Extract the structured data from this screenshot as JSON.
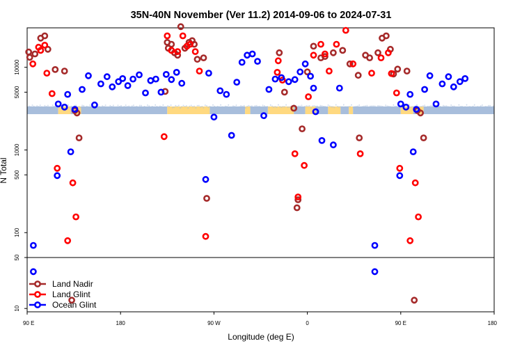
{
  "chart_data": {
    "type": "scatter",
    "title": "35N-40N November (Ver 11.2)   2014-09-06 to 2024-07-31",
    "xlabel": "Longitude (deg E)",
    "ylabel": "N Total",
    "x_scale": "wrapped longitude, 90E eastward through 180 and 0 to 180",
    "x_ticks": [
      "90 E",
      "180",
      "90 W",
      "0",
      "90 E",
      "180"
    ],
    "y_scale": "log",
    "y_ticks_upper": [
      "10000",
      "5000",
      "1000",
      "500",
      "100"
    ],
    "y_ticks_lower": [
      "50",
      "10"
    ],
    "y_range_upper": [
      50,
      30000
    ],
    "y_range_lower": [
      9,
      50
    ],
    "land_mask": {
      "land_color": "#a8bedc",
      "ocean_color": "#ffd980"
    },
    "legend_position": "bottom-left",
    "series": [
      {
        "name": "Land Nadir",
        "color": "#a52a2a",
        "points": [
          [
            91.5,
            15300
          ],
          [
            92.5,
            13200
          ],
          [
            97.5,
            14500
          ],
          [
            103,
            22500
          ],
          [
            107,
            24000
          ],
          [
            110,
            16500
          ],
          [
            117,
            9400
          ],
          [
            126,
            9000
          ],
          [
            133,
            13
          ],
          [
            136,
            3000
          ],
          [
            138,
            2800
          ],
          [
            140,
            1400
          ],
          [
            223,
            5100
          ],
          [
            225,
            20000
          ],
          [
            226,
            17000
          ],
          [
            229,
            19000
          ],
          [
            232,
            15000
          ],
          [
            235,
            14000
          ],
          [
            238,
            31000
          ],
          [
            242,
            17000
          ],
          [
            246,
            20000
          ],
          [
            249,
            21000
          ],
          [
            251,
            19000
          ],
          [
            254,
            12500
          ],
          [
            260,
            13000
          ],
          [
            263,
            260
          ],
          [
            333,
            15000
          ],
          [
            338,
            5000
          ],
          [
            347,
            3200
          ],
          [
            351,
            250
          ],
          [
            350,
            200
          ],
          [
            355,
            1800
          ],
          [
            360,
            8800
          ],
          [
            366,
            18000
          ],
          [
            373,
            13000
          ],
          [
            377,
            13500
          ],
          [
            385,
            15000
          ],
          [
            394,
            16000
          ],
          [
            401,
            11000
          ],
          [
            409,
            8000
          ],
          [
            410,
            1400
          ],
          [
            416,
            14000
          ],
          [
            420,
            13000
          ],
          [
            428,
            15000
          ],
          [
            432,
            22500
          ],
          [
            436,
            24000
          ],
          [
            440,
            16500
          ],
          [
            443,
            8300
          ],
          [
            447,
            9500
          ],
          [
            456,
            9000
          ],
          [
            463,
            13
          ],
          [
            466,
            3000
          ],
          [
            469,
            2800
          ],
          [
            472,
            1400
          ]
        ]
      },
      {
        "name": "Land Glint",
        "color": "#ff0000",
        "points": [
          [
            95.5,
            11000
          ],
          [
            101,
            17500
          ],
          [
            103,
            16000
          ],
          [
            107,
            18500
          ],
          [
            109,
            8500
          ],
          [
            114,
            4800
          ],
          [
            119,
            600
          ],
          [
            129,
            80
          ],
          [
            134,
            400
          ],
          [
            137,
            155
          ],
          [
            222,
            1450
          ],
          [
            225,
            24000
          ],
          [
            229,
            16000
          ],
          [
            235,
            15500
          ],
          [
            240,
            24000
          ],
          [
            244,
            18000
          ],
          [
            247,
            19000
          ],
          [
            252,
            15500
          ],
          [
            256,
            9000
          ],
          [
            262,
            90
          ],
          [
            331,
            8700
          ],
          [
            332,
            12000
          ],
          [
            336,
            7000
          ],
          [
            348,
            900
          ],
          [
            351,
            270
          ],
          [
            357,
            650
          ],
          [
            361,
            4400
          ],
          [
            366,
            14000
          ],
          [
            373,
            19000
          ],
          [
            377,
            14500
          ],
          [
            381,
            9000
          ],
          [
            388,
            19000
          ],
          [
            397,
            28000
          ],
          [
            404,
            11000
          ],
          [
            411,
            900
          ],
          [
            422,
            8500
          ],
          [
            431,
            13000
          ],
          [
            438,
            15000
          ],
          [
            441,
            8400
          ],
          [
            446,
            4900
          ],
          [
            449,
            600
          ],
          [
            459,
            80
          ],
          [
            464,
            400
          ],
          [
            467,
            155
          ]
        ]
      },
      {
        "name": "Ocean Glint",
        "color": "#0000ff",
        "points": [
          [
            96,
            70
          ],
          [
            96,
            32
          ],
          [
            119,
            490
          ],
          [
            120,
            3600
          ],
          [
            126,
            3300
          ],
          [
            129,
            4700
          ],
          [
            132,
            950
          ],
          [
            136,
            3100
          ],
          [
            143,
            5400
          ],
          [
            149,
            7900
          ],
          [
            155,
            3500
          ],
          [
            161,
            6300
          ],
          [
            167,
            7700
          ],
          [
            172,
            5800
          ],
          [
            178,
            6700
          ],
          [
            182,
            7300
          ],
          [
            187,
            6000
          ],
          [
            192,
            7200
          ],
          [
            198,
            8100
          ],
          [
            204,
            4900
          ],
          [
            209,
            6900
          ],
          [
            214,
            7200
          ],
          [
            219,
            5000
          ],
          [
            224,
            8200
          ],
          [
            229,
            7100
          ],
          [
            234,
            8700
          ],
          [
            239,
            6400
          ],
          [
            262,
            440
          ],
          [
            265,
            8500
          ],
          [
            270,
            2500
          ],
          [
            276,
            5200
          ],
          [
            282,
            4700
          ],
          [
            287,
            1500
          ],
          [
            292,
            6600
          ],
          [
            297,
            11500
          ],
          [
            302,
            14000
          ],
          [
            307,
            14500
          ],
          [
            312,
            11800
          ],
          [
            318,
            2600
          ],
          [
            323,
            5400
          ],
          [
            329,
            7200
          ],
          [
            335,
            7500
          ],
          [
            342,
            6700
          ],
          [
            348,
            7100
          ],
          [
            353,
            8800
          ],
          [
            358,
            11000
          ],
          [
            363,
            7800
          ],
          [
            366,
            5600
          ],
          [
            368,
            2900
          ],
          [
            374,
            1300
          ],
          [
            385,
            1150
          ],
          [
            391,
            5600
          ],
          [
            425,
            70
          ],
          [
            425,
            32
          ],
          [
            449,
            490
          ],
          [
            450,
            3600
          ],
          [
            455,
            3300
          ],
          [
            459,
            4700
          ],
          [
            462,
            950
          ],
          [
            465,
            3100
          ],
          [
            473,
            5400
          ],
          [
            478,
            7900
          ],
          [
            484,
            3600
          ],
          [
            490,
            6300
          ],
          [
            496,
            7700
          ],
          [
            501,
            5800
          ],
          [
            507,
            6700
          ],
          [
            512,
            7300
          ]
        ]
      }
    ]
  }
}
